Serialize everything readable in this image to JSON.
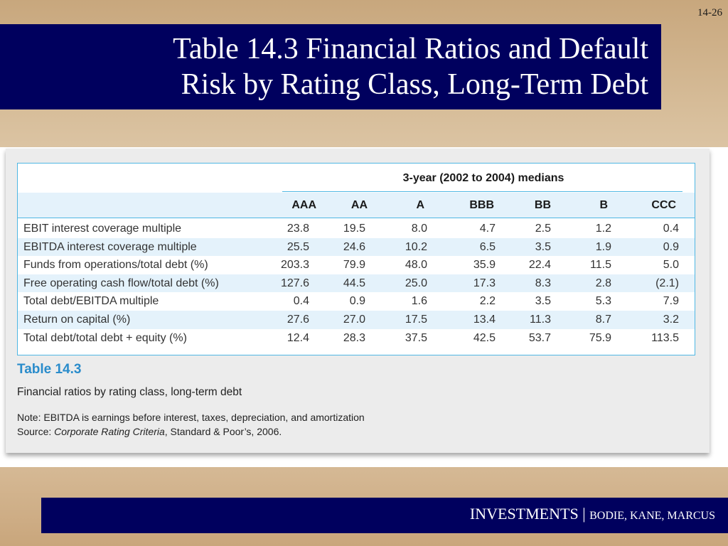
{
  "slide": {
    "page_number": "14-26",
    "title_line1": "Table 14.3 Financial Ratios and Default",
    "title_line2": "Risk by Rating Class, Long-Term Debt"
  },
  "table": {
    "group_header": "3-year (2002 to 2004) medians",
    "columns": [
      "AAA",
      "AA",
      "A",
      "BBB",
      "BB",
      "B",
      "CCC"
    ],
    "rows": [
      {
        "label": "EBIT interest coverage multiple",
        "values": [
          "23.8",
          "19.5",
          "8.0",
          "4.7",
          "2.5",
          "1.2",
          "0.4"
        ]
      },
      {
        "label": "EBITDA interest coverage multiple",
        "values": [
          "25.5",
          "24.6",
          "10.2",
          "6.5",
          "3.5",
          "1.9",
          "0.9"
        ]
      },
      {
        "label": "Funds from operations/total debt (%)",
        "values": [
          "203.3",
          "79.9",
          "48.0",
          "35.9",
          "22.4",
          "11.5",
          "5.0"
        ]
      },
      {
        "label": "Free operating cash flow/total debt (%)",
        "values": [
          "127.6",
          "44.5",
          "25.0",
          "17.3",
          "8.3",
          "2.8",
          "(2.1)"
        ]
      },
      {
        "label": "Total debt/EBITDA multiple",
        "values": [
          "0.4",
          "0.9",
          "1.6",
          "2.2",
          "3.5",
          "5.3",
          "7.9"
        ]
      },
      {
        "label": "Return on capital (%)",
        "values": [
          "27.6",
          "27.0",
          "17.5",
          "13.4",
          "11.3",
          "8.7",
          "3.2"
        ]
      },
      {
        "label": "Total debt/total debt + equity (%)",
        "values": [
          "12.4",
          "28.3",
          "37.5",
          "42.5",
          "53.7",
          "75.9",
          "113.5"
        ]
      }
    ]
  },
  "caption": {
    "title": "Table 14.3",
    "subtitle": "Financial ratios by rating class, long-term debt",
    "note": "Note: EBITDA is earnings before interest, taxes, depreciation, and amortization",
    "source_prefix": "Source: ",
    "source_italic": "Corporate Rating Criteria",
    "source_suffix": ", Standard & Poor’s, 2006."
  },
  "footer": {
    "main": "INVESTMENTS",
    "separator": " | ",
    "authors": "BODIE, KANE, MARCUS"
  },
  "colors": {
    "navy": "#00005e",
    "accent_blue": "#4fb7e3",
    "row_tint": "#e4f2fb",
    "caption_blue": "#2a8ccb"
  }
}
